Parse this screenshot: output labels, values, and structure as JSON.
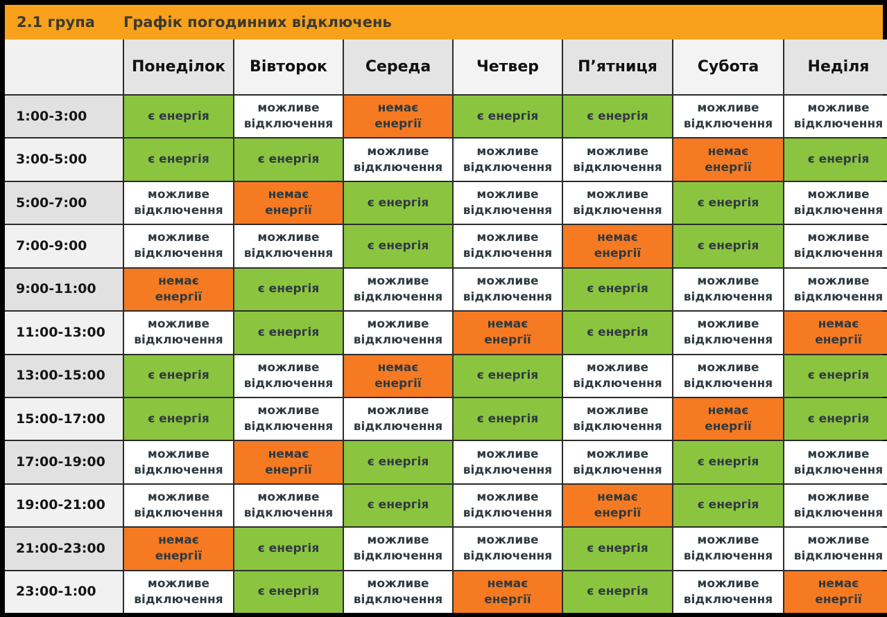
{
  "header": {
    "group": "2.1 група",
    "title": "Графік погодинних відключень"
  },
  "days": [
    "Понеділок",
    "Вівторок",
    "Середа",
    "Четвер",
    "П’ятниця",
    "Субота",
    "Неділя"
  ],
  "legend": {
    "E": [
      "є енергія"
    ],
    "M": [
      "можливе",
      "відключення"
    ],
    "N": [
      "немає",
      "енергії"
    ]
  },
  "colors": {
    "E": "#8bc540",
    "M": "#ffffff",
    "N": "#f57a22",
    "header": "#f9a11b"
  },
  "rows": [
    {
      "time": "1:00-3:00",
      "cells": [
        "E",
        "M",
        "N",
        "E",
        "E",
        "M",
        "M"
      ]
    },
    {
      "time": "3:00-5:00",
      "cells": [
        "E",
        "E",
        "M",
        "M",
        "M",
        "N",
        "E"
      ]
    },
    {
      "time": "5:00-7:00",
      "cells": [
        "M",
        "N",
        "E",
        "M",
        "M",
        "E",
        "M"
      ]
    },
    {
      "time": "7:00-9:00",
      "cells": [
        "M",
        "M",
        "E",
        "M",
        "N",
        "E",
        "M"
      ]
    },
    {
      "time": "9:00-11:00",
      "cells": [
        "N",
        "E",
        "M",
        "M",
        "E",
        "M",
        "M"
      ]
    },
    {
      "time": "11:00-13:00",
      "cells": [
        "M",
        "E",
        "M",
        "N",
        "E",
        "M",
        "N"
      ]
    },
    {
      "time": "13:00-15:00",
      "cells": [
        "E",
        "M",
        "N",
        "E",
        "M",
        "M",
        "E"
      ]
    },
    {
      "time": "15:00-17:00",
      "cells": [
        "E",
        "M",
        "M",
        "E",
        "M",
        "N",
        "E"
      ]
    },
    {
      "time": "17:00-19:00",
      "cells": [
        "M",
        "N",
        "E",
        "M",
        "M",
        "E",
        "M"
      ]
    },
    {
      "time": "19:00-21:00",
      "cells": [
        "M",
        "M",
        "E",
        "M",
        "N",
        "E",
        "M"
      ]
    },
    {
      "time": "21:00-23:00",
      "cells": [
        "N",
        "E",
        "M",
        "M",
        "E",
        "M",
        "M"
      ]
    },
    {
      "time": "23:00-1:00",
      "cells": [
        "M",
        "E",
        "M",
        "N",
        "E",
        "M",
        "N"
      ]
    }
  ]
}
